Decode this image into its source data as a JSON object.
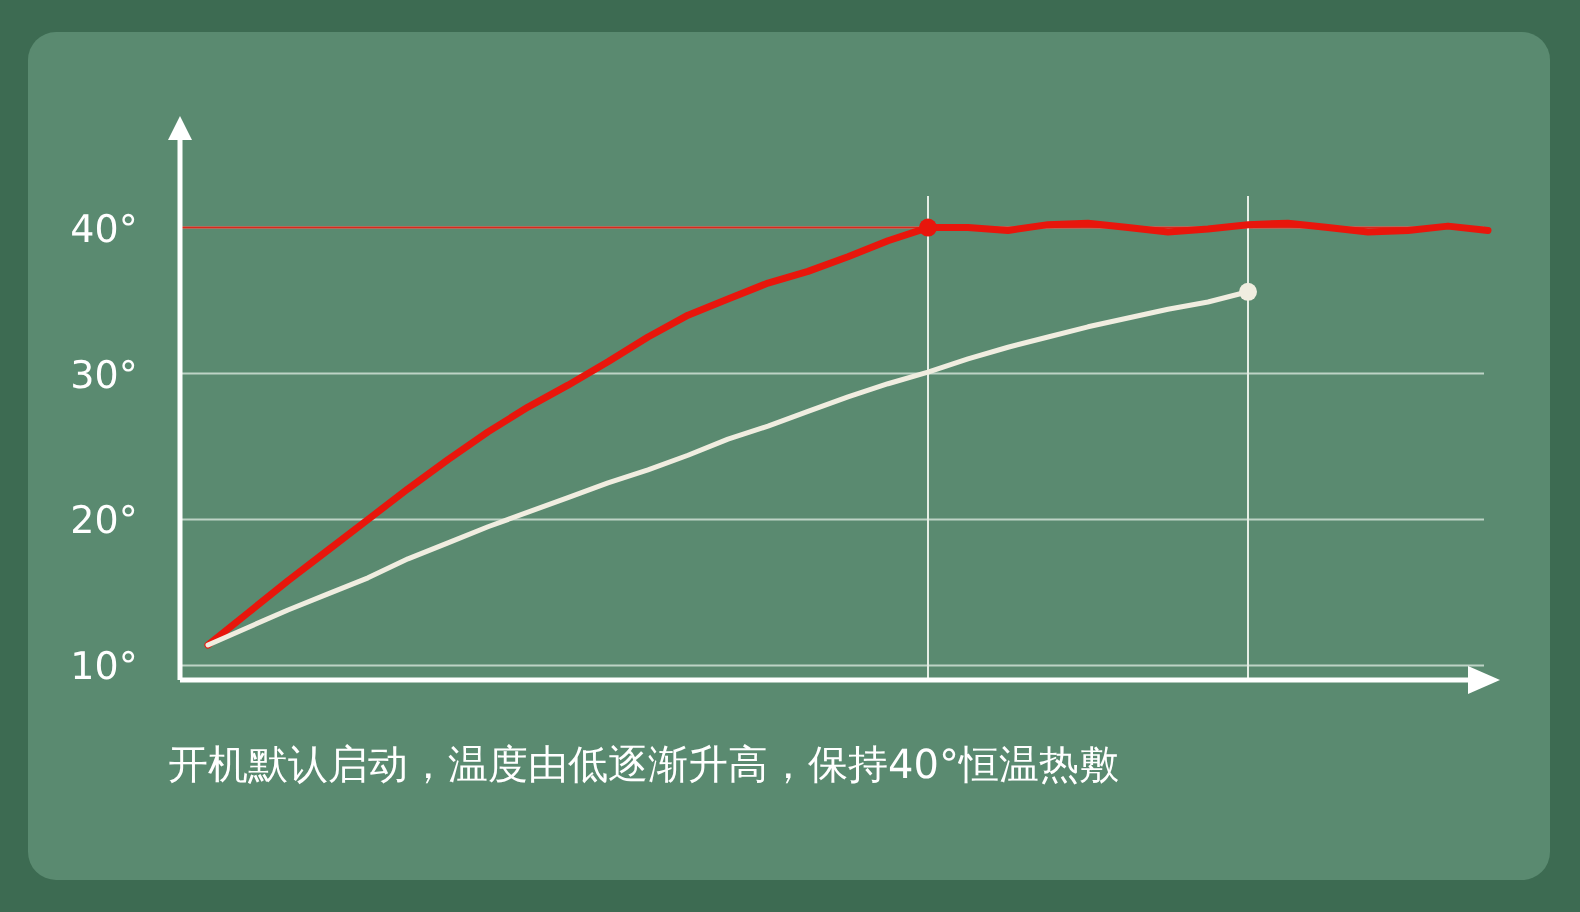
{
  "chart_data": {
    "type": "line",
    "categories": [
      null,
      null,
      null,
      null,
      null,
      null,
      null,
      null,
      null,
      null,
      null,
      null,
      null,
      null,
      null,
      null,
      null,
      null,
      null,
      null,
      null,
      null,
      null,
      null,
      null,
      null,
      null,
      null,
      null,
      null,
      null,
      null,
      null
    ],
    "series": [
      {
        "color": "#e8160c",
        "values": [
          11.4,
          13.6,
          15.8,
          17.9,
          20.0,
          22.1,
          24.1,
          26.0,
          27.7,
          29.2,
          30.8,
          32.5,
          34.0,
          35.1,
          36.2,
          37.0,
          38.0,
          39.1,
          40.0,
          40.0,
          39.8,
          40.2,
          40.3,
          40.0,
          39.7,
          39.9,
          40.2,
          40.3,
          40.0,
          39.7,
          39.8,
          40.1,
          39.8
        ]
      },
      {
        "color": "#f0ede0",
        "values": [
          11.4,
          12.6,
          13.8,
          14.9,
          16.0,
          17.3,
          18.4,
          19.5,
          20.5,
          21.5,
          22.5,
          23.4,
          24.4,
          25.5,
          26.4,
          27.4,
          28.4,
          29.3,
          30.1,
          31.0,
          31.8,
          32.5,
          33.2,
          33.8,
          34.4,
          34.9,
          35.6,
          null,
          null,
          null,
          null,
          null,
          null
        ]
      }
    ],
    "ylim": [
      9,
      46
    ],
    "yticks": [
      {
        "value": 10,
        "label": "10°"
      },
      {
        "value": 20,
        "label": "20°"
      },
      {
        "value": 30,
        "label": "30°"
      },
      {
        "value": 40,
        "label": "40°"
      }
    ],
    "grid": "y",
    "ref_lines": [
      {
        "axis": "y",
        "value": 40,
        "color": "#d8281c"
      }
    ],
    "annotations": [
      "开机默认启动，温度由低逐渐升高，保持40°恒温热敷"
    ]
  }
}
